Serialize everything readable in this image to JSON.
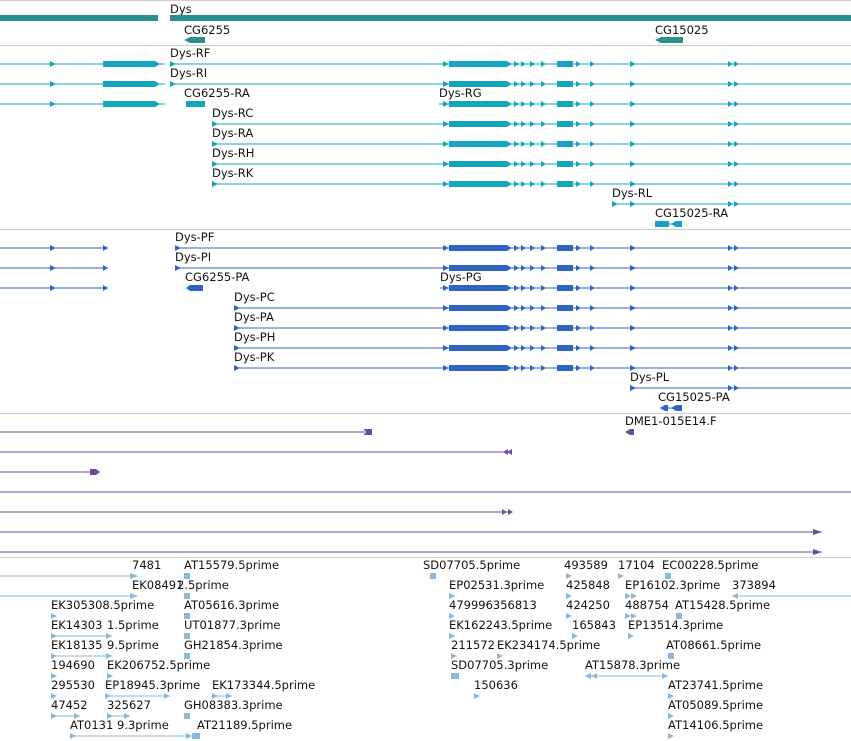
{
  "colors": {
    "gene": "#2c8f8c",
    "transcript": "#14a4bd",
    "protein": "#2f64c4",
    "cdna": "#6e4b9c",
    "est": "#8ab9d9",
    "divider": "#cccccc"
  },
  "gene_track": {
    "label": "Dys",
    "genes": [
      {
        "label": "CG6255"
      },
      {
        "label": "CG15025"
      }
    ]
  },
  "transcript_track": {
    "rows": [
      {
        "label": "Dys-RF"
      },
      {
        "label": "Dys-RI"
      },
      {
        "label": "CG6255-RA"
      },
      {
        "label": "Dys-RG"
      },
      {
        "label": "Dys-RC"
      },
      {
        "label": "Dys-RA"
      },
      {
        "label": "Dys-RH"
      },
      {
        "label": "Dys-RK"
      },
      {
        "label": "Dys-RL"
      },
      {
        "label": "CG15025-RA"
      }
    ]
  },
  "protein_track": {
    "rows": [
      {
        "label": "Dys-PF"
      },
      {
        "label": "Dys-PI"
      },
      {
        "label": "CG6255-PA"
      },
      {
        "label": "Dys-PG"
      },
      {
        "label": "Dys-PC"
      },
      {
        "label": "Dys-PA"
      },
      {
        "label": "Dys-PH"
      },
      {
        "label": "Dys-PK"
      },
      {
        "label": "Dys-PL"
      },
      {
        "label": "CG15025-PA"
      }
    ]
  },
  "cdna_track": {
    "labels": [
      "DME1-015E14.F"
    ]
  },
  "est_track": {
    "labels": [
      "7481",
      "AT15579.5prime",
      "SD07705.5prime",
      "493589",
      "17104",
      "EC00228.5prime",
      "EK08491",
      "2.5prime",
      "EP02531.3prime",
      "425848",
      "EP16102.3prime",
      "373894",
      "EK305308.5prime",
      "AT05616.3prime",
      "479996356813",
      "424250",
      "488754",
      "AT15428.5prime",
      "EK14303",
      "1.5prime",
      "UT01877.3prime",
      "EK162243.5prime",
      "165843",
      "EP13514.3prime",
      "EK18135",
      "9.5prime",
      "GH21854.3prime",
      "211572",
      "EK234174.5prime",
      "AT08661.5prime",
      "194690",
      "EK206752.5prime",
      "SD07705.3prime",
      "AT15878.3prime",
      "295530",
      "EP18945.3prime",
      "EK173344.5prime",
      "150636",
      "AT23741.5prime",
      "47452",
      "325627",
      "GH08383.3prime",
      "AT05089.5prime",
      "AT0131",
      "9.3prime",
      "AT21189.5prime",
      "AT14106.5prime"
    ]
  }
}
